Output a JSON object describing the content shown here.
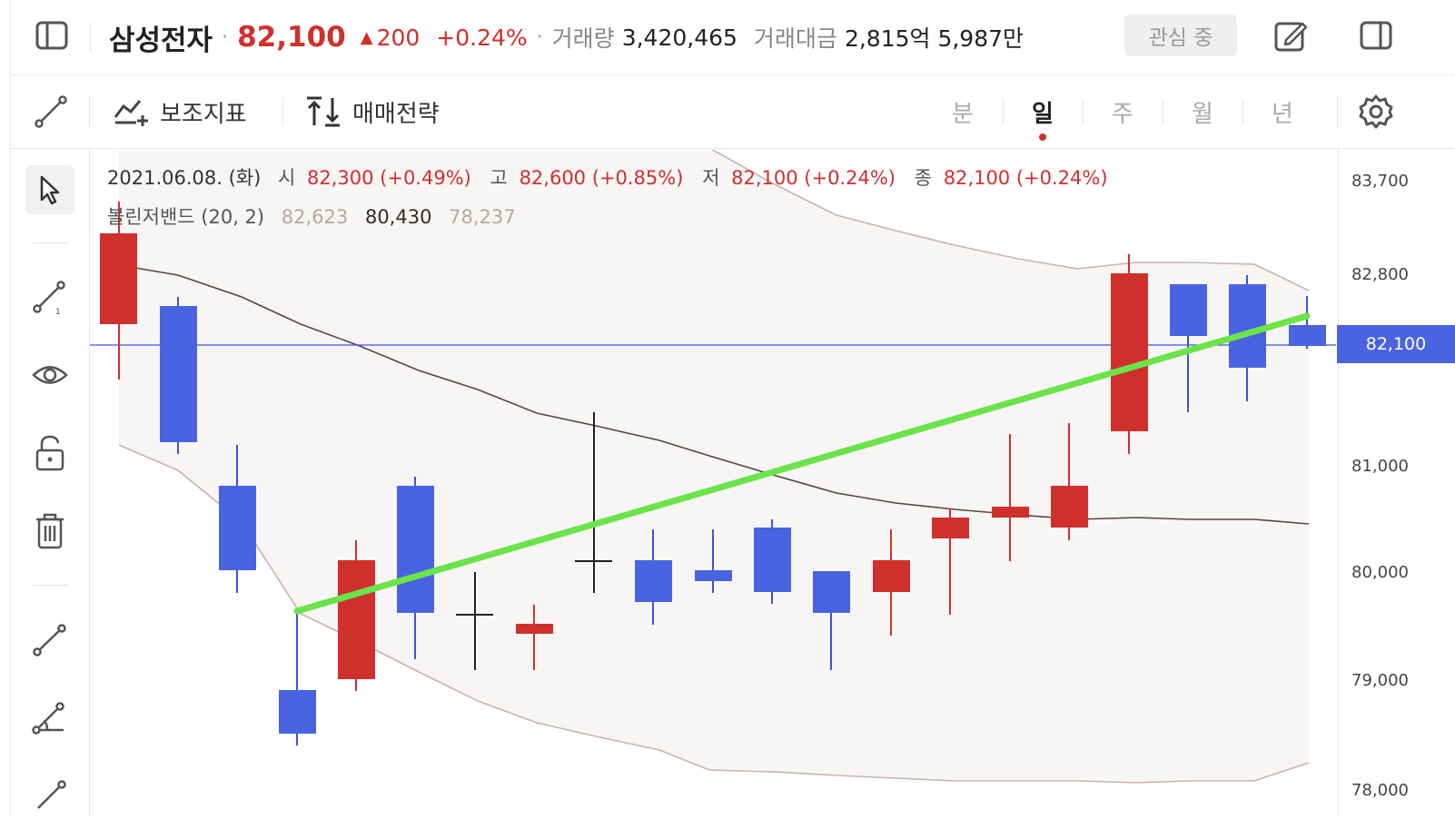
{
  "header": {
    "stock_name": "삼성전자",
    "price": "82,100",
    "change_arrow": "▲",
    "change": "200",
    "change_pct": "+0.24%",
    "volume_label": "거래량",
    "volume_value": "3,420,465",
    "amount_label": "거래대금",
    "amount_value": "2,815억 5,987만",
    "watch_button": "관심 중",
    "icons": {
      "left": "sidebar-toggle-icon",
      "edit": "edit-icon",
      "right": "panel-icon"
    }
  },
  "toolbar": {
    "indicator_label": "보조지표",
    "strategy_label": "매매전략",
    "periods": [
      "분",
      "일",
      "주",
      "월",
      "년"
    ],
    "active_period": "일",
    "icons": {
      "draw": "line-tool-icon",
      "indicator": "indicator-icon",
      "strategy": "trade-strategy-icon",
      "settings": "gear-icon"
    }
  },
  "rail": {
    "tools": [
      "cursor-icon",
      "line-tool-icon",
      "eye-icon",
      "unlock-icon",
      "trash-icon",
      "line-tool-icon",
      "angle-tool-icon",
      "pen-tool-icon"
    ]
  },
  "chart_info": {
    "date": "2021.06.08. (화)",
    "open_label": "시",
    "open_value": "82,300 (+0.49%)",
    "high_label": "고",
    "high_value": "82,600 (+0.85%)",
    "low_label": "저",
    "low_value": "82,100 (+0.24%)",
    "close_label": "종",
    "close_value": "82,100 (+0.24%)",
    "bollinger_label": "볼린저밴드 (20, 2)",
    "bollinger_upper": "82,623",
    "bollinger_mid": "80,430",
    "bollinger_lower": "78,237"
  },
  "price_axis": {
    "labels": [
      "83,700",
      "82,800",
      "81,000",
      "80,000",
      "79,000",
      "78,000"
    ],
    "current_price": "82,100"
  },
  "colors": {
    "up": "#d0302c",
    "down": "#4a63e0",
    "trendline": "#6be34a",
    "bands": "#c9b3ad",
    "middle": "#5b4443"
  }
}
